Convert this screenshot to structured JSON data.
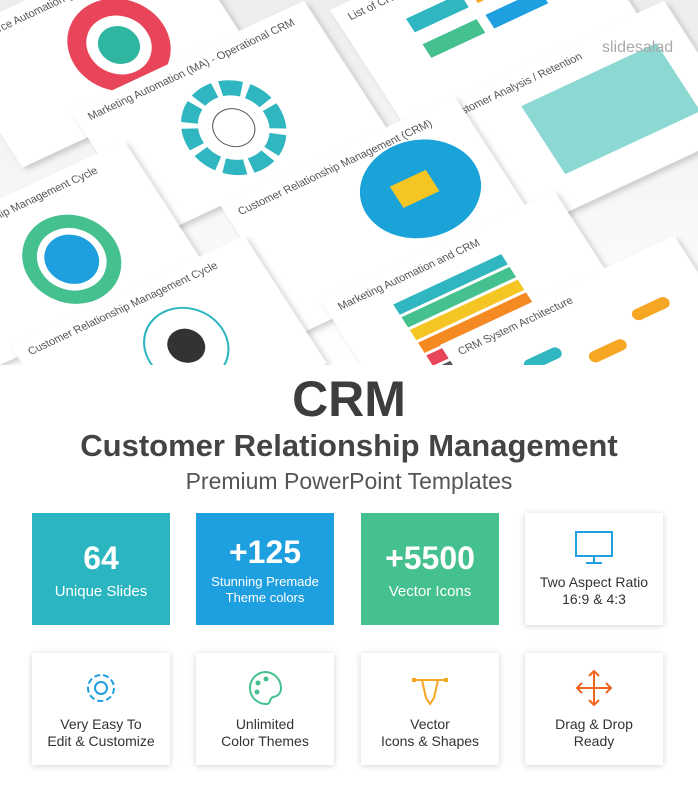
{
  "watermark": "slidesalad",
  "slides": [
    {
      "title": "Sales Force Automation (SFA)"
    },
    {
      "title": "List of CRM Features"
    },
    {
      "title": "Marketing Automation (MA) - Operational CRM"
    },
    {
      "title": "Customer Analysis / Retention"
    },
    {
      "title": "Customer Relationship Management (CRM)"
    },
    {
      "title": "Customer Relationship Management Cycle"
    },
    {
      "title": "Marketing Automation and CRM"
    },
    {
      "title": "Customer Relationship Management Cycle"
    },
    {
      "title": "CRM System Architecture"
    }
  ],
  "header": {
    "title": "CRM",
    "subtitle": "Customer Relationship Management",
    "tagline": "Premium PowerPoint Templates"
  },
  "features": [
    {
      "value": "64",
      "lines": [
        "Unique Slides"
      ]
    },
    {
      "value": "+125",
      "lines": [
        "Stunning Premade",
        "Theme colors"
      ]
    },
    {
      "value": "+5500",
      "lines": [
        "Vector Icons"
      ]
    },
    {
      "lines": [
        "Two Aspect Ratio",
        "16:9 & 4:3"
      ]
    },
    {
      "lines": [
        "Very Easy To",
        "Edit & Customize"
      ]
    },
    {
      "lines": [
        "Unlimited",
        "Color Themes"
      ]
    },
    {
      "lines": [
        "Vector",
        "Icons & Shapes"
      ]
    },
    {
      "lines": [
        "Drag & Drop",
        "Ready"
      ]
    }
  ]
}
